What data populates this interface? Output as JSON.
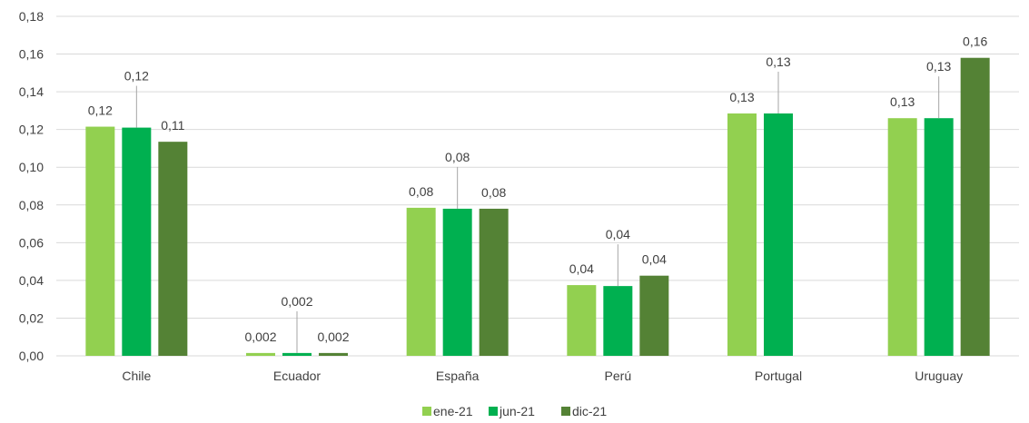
{
  "chart_data": {
    "type": "bar",
    "categories": [
      "Chile",
      "Ecuador",
      "España",
      "Perú",
      "Portugal",
      "Uruguay"
    ],
    "series": [
      {
        "name": "ene-21",
        "color": "#92d050",
        "values": [
          0.1215,
          0.0015,
          0.0785,
          0.0375,
          0.1285,
          0.126
        ],
        "labels": [
          "0,12",
          "0,002",
          "0,08",
          "0,04",
          "0,13",
          "0,13"
        ]
      },
      {
        "name": "jun-21",
        "color": "#00b050",
        "values": [
          0.121,
          0.0015,
          0.078,
          0.037,
          0.1285,
          0.126
        ],
        "labels": [
          "0,12",
          "0,002",
          "0,08",
          "0,04",
          "0,13",
          "0,13"
        ]
      },
      {
        "name": "dic-21",
        "color": "#548235",
        "values": [
          0.1135,
          0.0015,
          0.078,
          0.0425,
          0.0,
          0.158
        ],
        "labels": [
          "0,11",
          "0,002",
          "0,08",
          "0,04",
          "",
          "0,16"
        ]
      }
    ],
    "y_ticks": [
      "0,00",
      "0,02",
      "0,04",
      "0,06",
      "0,08",
      "0,10",
      "0,12",
      "0,14",
      "0,16",
      "0,18"
    ],
    "ylim": [
      0,
      0.18
    ],
    "ystep": 0.02,
    "grid": true,
    "legend_position": "bottom",
    "title": "",
    "xlabel": "",
    "ylabel": ""
  }
}
